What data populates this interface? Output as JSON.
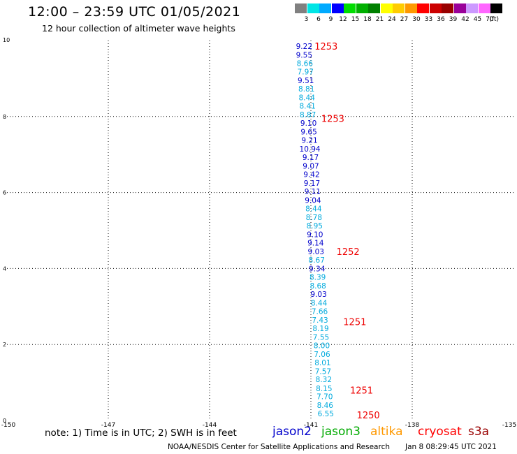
{
  "header": {
    "title": "12:00 – 23:59 UTC 01/05/2021",
    "subtitle": "12 hour collection of altimeter wave heights"
  },
  "color_scale": {
    "unit": "(ft)",
    "bins": [
      {
        "label": "3",
        "color": "#808080"
      },
      {
        "label": "6",
        "color": "#00e5e5"
      },
      {
        "label": "9",
        "color": "#00aaff"
      },
      {
        "label": "12",
        "color": "#0000ff"
      },
      {
        "label": "15",
        "color": "#00dd00"
      },
      {
        "label": "18",
        "color": "#00b000"
      },
      {
        "label": "21",
        "color": "#008000"
      },
      {
        "label": "24",
        "color": "#ffff00"
      },
      {
        "label": "27",
        "color": "#ffcc00"
      },
      {
        "label": "30",
        "color": "#ff9900"
      },
      {
        "label": "33",
        "color": "#ff0000"
      },
      {
        "label": "36",
        "color": "#cc0000"
      },
      {
        "label": "39",
        "color": "#990000"
      },
      {
        "label": "42",
        "color": "#990099"
      },
      {
        "label": "45",
        "color": "#cc99ff"
      },
      {
        "label": "70",
        "color": "#ff66ff"
      },
      {
        "label": "",
        "color": "#000000"
      }
    ]
  },
  "footer": {
    "note": "note: 1) Time is in UTC; 2) SWH is in feet",
    "satellites": [
      {
        "name": "jason2",
        "color": "#0000cc"
      },
      {
        "name": "jason3",
        "color": "#00aa00"
      },
      {
        "name": "altika",
        "color": "#ff9900"
      },
      {
        "name": "cryosat",
        "color": "#ff0000"
      },
      {
        "name": "s3a",
        "color": "#990000"
      }
    ],
    "credit": "NOAA/NESDIS Center for Satellite Applications and Research",
    "timestamp": "Jan  8 08:29:45 UTC 2021"
  },
  "chart_data": {
    "type": "scatter",
    "xlim": [
      -150,
      -135
    ],
    "ylim": [
      0,
      10
    ],
    "x_ticks": [
      "-150",
      "-147",
      "-144",
      "-141",
      "-138",
      "-135"
    ],
    "y_ticks": [
      "0",
      "2",
      "4",
      "6",
      "8",
      "10"
    ],
    "grid": true,
    "points": [
      {
        "x": -141.2,
        "y": 9.85,
        "swh": "9.22",
        "color": "#0000cc"
      },
      {
        "x": -141.2,
        "y": 9.62,
        "swh": "9.55",
        "color": "#0000cc"
      },
      {
        "x": -141.18,
        "y": 9.4,
        "swh": "8.66",
        "color": "#00aadd"
      },
      {
        "x": -141.16,
        "y": 9.18,
        "swh": "7.97",
        "color": "#00aadd"
      },
      {
        "x": -141.15,
        "y": 8.95,
        "swh": "9.51",
        "color": "#0000cc"
      },
      {
        "x": -141.13,
        "y": 8.73,
        "swh": "8.81",
        "color": "#00aadd"
      },
      {
        "x": -141.12,
        "y": 8.5,
        "swh": "8.44",
        "color": "#00aadd"
      },
      {
        "x": -141.1,
        "y": 8.28,
        "swh": "8.41",
        "color": "#00aadd"
      },
      {
        "x": -141.09,
        "y": 8.05,
        "swh": "8.87",
        "color": "#00aadd"
      },
      {
        "x": -141.07,
        "y": 7.83,
        "swh": "9.10",
        "color": "#0000cc"
      },
      {
        "x": -141.06,
        "y": 7.6,
        "swh": "9.65",
        "color": "#0000cc"
      },
      {
        "x": -141.04,
        "y": 7.38,
        "swh": "9.21",
        "color": "#0000cc"
      },
      {
        "x": -141.03,
        "y": 7.15,
        "swh": "10.94",
        "color": "#0000cc"
      },
      {
        "x": -141.01,
        "y": 6.93,
        "swh": "9.17",
        "color": "#0000cc"
      },
      {
        "x": -141.0,
        "y": 6.7,
        "swh": "9.07",
        "color": "#0000cc"
      },
      {
        "x": -140.98,
        "y": 6.48,
        "swh": "9.42",
        "color": "#0000cc"
      },
      {
        "x": -140.97,
        "y": 6.25,
        "swh": "9.17",
        "color": "#0000cc"
      },
      {
        "x": -140.95,
        "y": 6.03,
        "swh": "9.11",
        "color": "#0000cc"
      },
      {
        "x": -140.94,
        "y": 5.8,
        "swh": "9.04",
        "color": "#0000cc"
      },
      {
        "x": -140.92,
        "y": 5.58,
        "swh": "8.44",
        "color": "#00aadd"
      },
      {
        "x": -140.91,
        "y": 5.35,
        "swh": "8.78",
        "color": "#00aadd"
      },
      {
        "x": -140.89,
        "y": 5.13,
        "swh": "8.95",
        "color": "#00aadd"
      },
      {
        "x": -140.88,
        "y": 4.9,
        "swh": "9.10",
        "color": "#0000cc"
      },
      {
        "x": -140.86,
        "y": 4.68,
        "swh": "9.14",
        "color": "#0000cc"
      },
      {
        "x": -140.85,
        "y": 4.45,
        "swh": "9.03",
        "color": "#0000cc"
      },
      {
        "x": -140.83,
        "y": 4.23,
        "swh": "8.67",
        "color": "#00aadd"
      },
      {
        "x": -140.82,
        "y": 4.0,
        "swh": "9.34",
        "color": "#0000cc"
      },
      {
        "x": -140.8,
        "y": 3.78,
        "swh": "8.39",
        "color": "#00aadd"
      },
      {
        "x": -140.79,
        "y": 3.55,
        "swh": "8.68",
        "color": "#00aadd"
      },
      {
        "x": -140.77,
        "y": 3.33,
        "swh": "9.03",
        "color": "#0000cc"
      },
      {
        "x": -140.76,
        "y": 3.1,
        "swh": "8.44",
        "color": "#00aadd"
      },
      {
        "x": -140.74,
        "y": 2.88,
        "swh": "7.66",
        "color": "#00aadd"
      },
      {
        "x": -140.73,
        "y": 2.65,
        "swh": "7.43",
        "color": "#00aadd"
      },
      {
        "x": -140.71,
        "y": 2.43,
        "swh": "8.19",
        "color": "#00aadd"
      },
      {
        "x": -140.7,
        "y": 2.2,
        "swh": "7.55",
        "color": "#00aadd"
      },
      {
        "x": -140.68,
        "y": 1.98,
        "swh": "8.00",
        "color": "#00aadd"
      },
      {
        "x": -140.67,
        "y": 1.75,
        "swh": "7.06",
        "color": "#00aadd"
      },
      {
        "x": -140.65,
        "y": 1.53,
        "swh": "8.01",
        "color": "#00aadd"
      },
      {
        "x": -140.64,
        "y": 1.3,
        "swh": "7.57",
        "color": "#00aadd"
      },
      {
        "x": -140.62,
        "y": 1.08,
        "swh": "8.32",
        "color": "#00aadd"
      },
      {
        "x": -140.61,
        "y": 0.85,
        "swh": "8.15",
        "color": "#00aadd"
      },
      {
        "x": -140.59,
        "y": 0.63,
        "swh": "7.70",
        "color": "#00aadd"
      },
      {
        "x": -140.58,
        "y": 0.4,
        "swh": "8.46",
        "color": "#00aadd"
      },
      {
        "x": -140.56,
        "y": 0.18,
        "swh": "6.55",
        "color": "#00aadd"
      }
    ],
    "time_labels": [
      {
        "x": -140.55,
        "y": 9.85,
        "text": "1253",
        "color": "#ee0000"
      },
      {
        "x": -140.35,
        "y": 7.95,
        "text": "1253",
        "color": "#ee0000"
      },
      {
        "x": -139.9,
        "y": 4.45,
        "text": "1252",
        "color": "#ee0000"
      },
      {
        "x": -139.7,
        "y": 2.6,
        "text": "1251",
        "color": "#ee0000"
      },
      {
        "x": -139.5,
        "y": 0.8,
        "text": "1251",
        "color": "#ee0000"
      },
      {
        "x": -139.3,
        "y": 0.15,
        "text": "1250",
        "color": "#ee0000"
      }
    ]
  }
}
